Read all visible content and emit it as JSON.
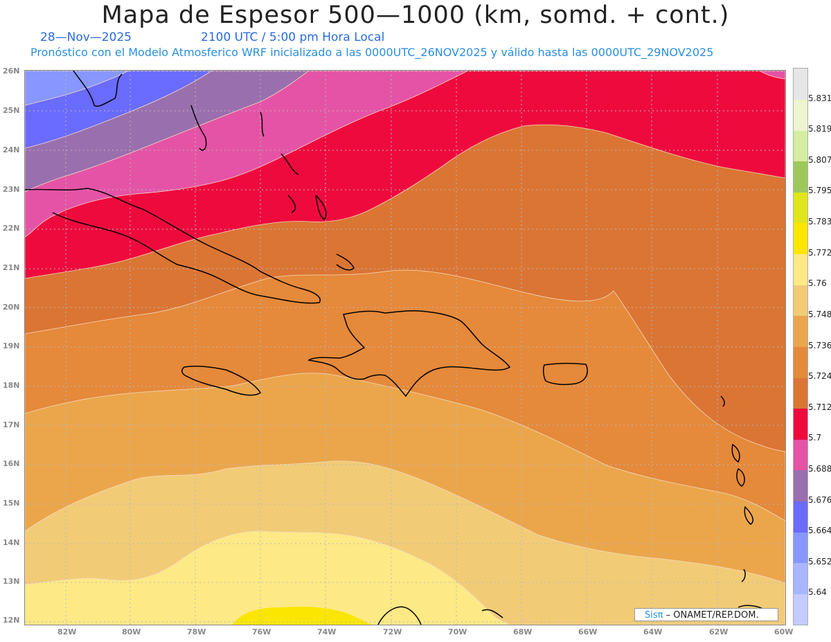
{
  "title": "Mapa de Espesor 500—1000 (km, somd. + cont.)",
  "date": "28—Nov—2025",
  "time_label": "2100 UTC / 5:00 pm Hora Local",
  "model_line": "Pronóstico con el Modelo Atmosferico WRF inicializado a las 0000UTC_26NOV2025 y válido hasta las  0000UTC_29NOV2025",
  "credit": {
    "brand": "Sisπ",
    "text": " – ONAMET/REP.DOM."
  },
  "lat_labels": [
    "26N",
    "25N",
    "24N",
    "23N",
    "22N",
    "21N",
    "20N",
    "19N",
    "18N",
    "17N",
    "16N",
    "15N",
    "14N",
    "13N",
    "12N"
  ],
  "lon_labels": [
    "82W",
    "80W",
    "78W",
    "76W",
    "74W",
    "72W",
    "70W",
    "68W",
    "66W",
    "64W",
    "62W",
    "60W"
  ],
  "colorbar": {
    "levels": [
      "5.64",
      "5.652",
      "5.664",
      "5.676",
      "5.688",
      "5.7",
      "5.712",
      "5.724",
      "5.736",
      "5.748",
      "5.76",
      "5.772",
      "5.783",
      "5.795",
      "5.807",
      "5.819",
      "5.831"
    ],
    "colors": [
      "#c4ccff",
      "#a9b6ff",
      "#8797ff",
      "#6a6bff",
      "#9a6fae",
      "#e553a6",
      "#ef0a3e",
      "#db7534",
      "#e5893a",
      "#eba64c",
      "#f2cb77",
      "#fde985",
      "#fae600",
      "#e1e51b",
      "#9fc85a",
      "#d4eda0",
      "#eef4cf",
      "#e6e6e6"
    ]
  }
}
